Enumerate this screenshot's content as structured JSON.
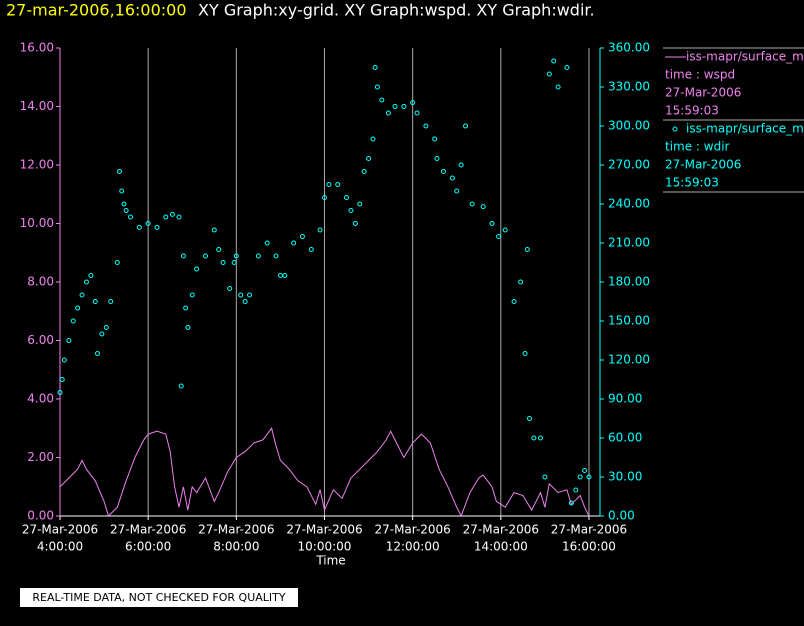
{
  "chart_data": {
    "type": "xy",
    "title_time": "27-mar-2006,16:00:00",
    "title": "XY Graph:xy-grid.  XY Graph:wspd.  XY Graph:wdir.",
    "x_label": "Time",
    "footer": "REAL-TIME DATA, NOT CHECKED FOR QUALITY",
    "xlim": [
      4,
      16.25
    ],
    "xticks": [
      {
        "value": 4,
        "date": "27-Mar-2006",
        "label": "4:00:00"
      },
      {
        "value": 6,
        "date": "27-Mar-2006",
        "label": "6:00:00"
      },
      {
        "value": 8,
        "date": "27-Mar-2006",
        "label": "8:00:00"
      },
      {
        "value": 10,
        "date": "27-Mar-2006",
        "label": "10:00:00"
      },
      {
        "value": 12,
        "date": "27-Mar-2006",
        "label": "12:00:00"
      },
      {
        "value": 14,
        "date": "27-Mar-2006",
        "label": "14:00:00"
      },
      {
        "value": 16,
        "date": "27-Mar-2006",
        "label": "16:00:00"
      }
    ],
    "grid": true,
    "ylim": [
      0,
      16
    ],
    "yticks": [
      {
        "value": 0,
        "label": "0.00"
      },
      {
        "value": 2,
        "label": "2.00"
      },
      {
        "value": 4,
        "label": "4.00"
      },
      {
        "value": 6,
        "label": "6.00"
      },
      {
        "value": 8,
        "label": "8.00"
      },
      {
        "value": 10,
        "label": "10.00"
      },
      {
        "value": 12,
        "label": "12.00"
      },
      {
        "value": 14,
        "label": "14.00"
      },
      {
        "value": 16,
        "label": "16.00"
      }
    ],
    "y2lim": [
      0,
      360
    ],
    "y2ticks": [
      {
        "value": 0,
        "label": "0.00"
      },
      {
        "value": 30,
        "label": "30.00"
      },
      {
        "value": 60,
        "label": "60.00"
      },
      {
        "value": 90,
        "label": "90.00"
      },
      {
        "value": 120,
        "label": "120.00"
      },
      {
        "value": 150,
        "label": "150.00"
      },
      {
        "value": 180,
        "label": "180.00"
      },
      {
        "value": 210,
        "label": "210.00"
      },
      {
        "value": 240,
        "label": "240.00"
      },
      {
        "value": 270,
        "label": "270.00"
      },
      {
        "value": 300,
        "label": "300.00"
      },
      {
        "value": 330,
        "label": "330.00"
      },
      {
        "value": 360,
        "label": "360.00"
      }
    ],
    "series": [
      {
        "name": "iss-mapr/surface_m",
        "field": "time : wspd",
        "date": "27-Mar-2006",
        "time": "15:59:03",
        "kind": "line",
        "color": "#ee82ee",
        "x": [
          4.0,
          4.2,
          4.4,
          4.5,
          4.6,
          4.8,
          5.0,
          5.1,
          5.3,
          5.5,
          5.7,
          5.9,
          6.0,
          6.2,
          6.4,
          6.5,
          6.6,
          6.7,
          6.8,
          6.9,
          7.0,
          7.1,
          7.3,
          7.5,
          7.6,
          7.8,
          8.0,
          8.2,
          8.4,
          8.6,
          8.8,
          8.9,
          9.0,
          9.2,
          9.4,
          9.6,
          9.8,
          9.9,
          10.0,
          10.2,
          10.4,
          10.6,
          10.8,
          11.0,
          11.2,
          11.4,
          11.5,
          11.6,
          11.8,
          12.0,
          12.2,
          12.4,
          12.6,
          12.8,
          13.0,
          13.1,
          13.3,
          13.5,
          13.6,
          13.8,
          13.9,
          14.1,
          14.3,
          14.5,
          14.7,
          14.9,
          15.0,
          15.1,
          15.3,
          15.5,
          15.6,
          15.8,
          15.9,
          16.0
        ],
        "values": [
          1.0,
          1.3,
          1.6,
          1.9,
          1.6,
          1.2,
          0.5,
          0.0,
          0.3,
          1.2,
          2.0,
          2.6,
          2.8,
          2.9,
          2.8,
          2.2,
          1.0,
          0.3,
          1.0,
          0.2,
          1.0,
          0.8,
          1.3,
          0.5,
          0.8,
          1.5,
          2.0,
          2.2,
          2.5,
          2.6,
          3.0,
          2.4,
          1.9,
          1.6,
          1.2,
          1.0,
          0.4,
          0.9,
          0.2,
          0.9,
          0.6,
          1.3,
          1.6,
          1.9,
          2.2,
          2.6,
          2.9,
          2.6,
          2.0,
          2.5,
          2.8,
          2.5,
          1.6,
          1.0,
          0.3,
          0.0,
          0.8,
          1.3,
          1.4,
          1.0,
          0.5,
          0.3,
          0.8,
          0.7,
          0.2,
          0.8,
          0.3,
          1.1,
          0.8,
          0.9,
          0.4,
          0.7,
          0.3,
          0.0
        ]
      },
      {
        "name": "iss-mapr/surface_m",
        "field": "time : wdir",
        "date": "27-Mar-2006",
        "time": "15:59:03",
        "kind": "scatter",
        "axis": "y2",
        "color": "#00ffff",
        "x": [
          4.0,
          4.05,
          4.1,
          4.2,
          4.3,
          4.4,
          4.5,
          4.6,
          4.7,
          4.8,
          4.85,
          4.95,
          5.05,
          5.15,
          5.3,
          5.35,
          5.4,
          5.45,
          5.5,
          5.6,
          5.8,
          6.0,
          6.2,
          6.4,
          6.55,
          6.7,
          6.75,
          6.8,
          6.85,
          6.9,
          7.0,
          7.1,
          7.3,
          7.5,
          7.6,
          7.7,
          7.85,
          7.95,
          8.0,
          8.1,
          8.2,
          8.3,
          8.5,
          8.7,
          8.9,
          9.0,
          9.1,
          9.3,
          9.5,
          9.7,
          9.9,
          10.0,
          10.1,
          10.3,
          10.5,
          10.6,
          10.7,
          10.8,
          10.9,
          11.0,
          11.1,
          11.15,
          11.2,
          11.3,
          11.45,
          11.6,
          11.8,
          12.0,
          12.1,
          12.3,
          12.5,
          12.55,
          12.7,
          12.9,
          13.0,
          13.1,
          13.2,
          13.35,
          13.6,
          13.8,
          13.95,
          14.1,
          14.3,
          14.45,
          14.55,
          14.6,
          14.65,
          14.75,
          14.9,
          15.0,
          15.1,
          15.2,
          15.3,
          15.5,
          15.6,
          15.7,
          15.8,
          15.9,
          16.0
        ],
        "values": [
          95,
          105,
          120,
          135,
          150,
          160,
          170,
          180,
          185,
          165,
          125,
          140,
          145,
          165,
          195,
          265,
          250,
          240,
          235,
          230,
          222,
          225,
          222,
          230,
          232,
          230,
          100,
          200,
          160,
          145,
          170,
          190,
          200,
          220,
          205,
          195,
          175,
          195,
          200,
          170,
          165,
          170,
          200,
          210,
          200,
          185,
          185,
          210,
          215,
          205,
          220,
          245,
          255,
          255,
          245,
          235,
          225,
          240,
          265,
          275,
          290,
          345,
          330,
          320,
          310,
          315,
          315,
          318,
          310,
          300,
          290,
          275,
          265,
          260,
          250,
          270,
          300,
          240,
          238,
          225,
          215,
          220,
          165,
          180,
          125,
          205,
          75,
          60,
          60,
          30,
          340,
          350,
          330,
          345,
          10,
          20,
          30,
          35,
          30
        ]
      }
    ]
  }
}
